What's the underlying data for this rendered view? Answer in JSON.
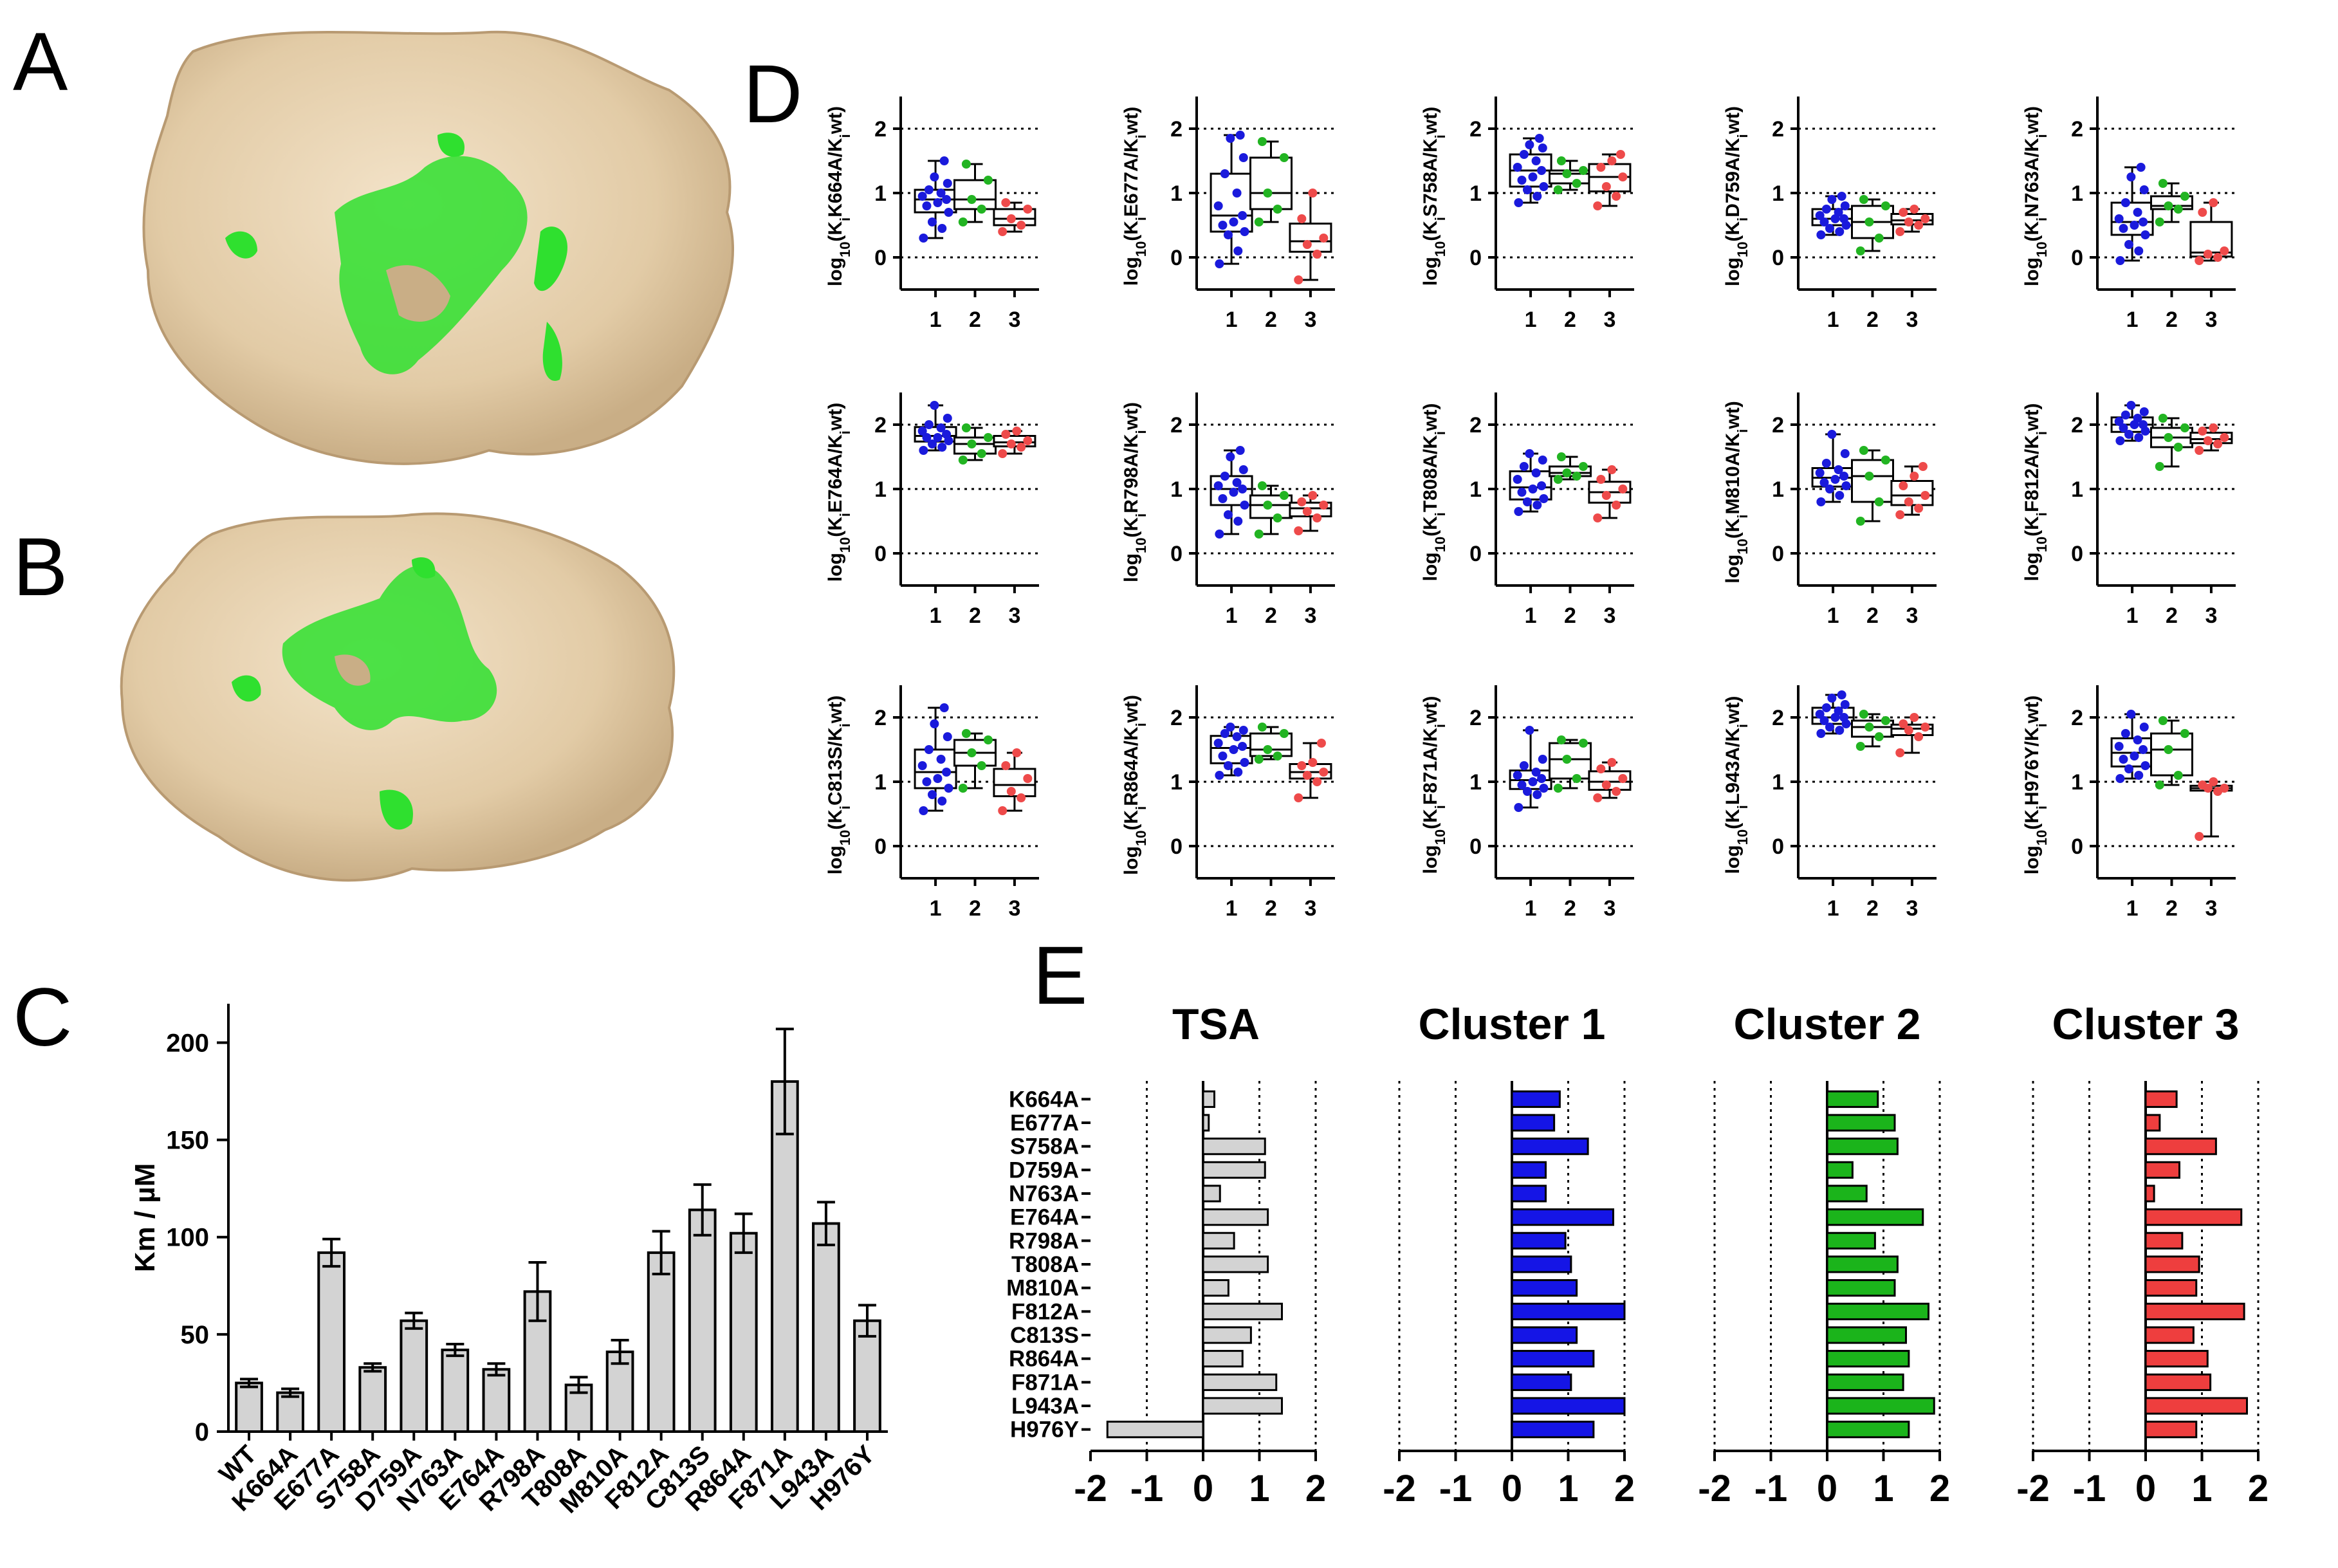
{
  "panel_labels": {
    "a": "A",
    "b": "B",
    "c": "C",
    "d": "D",
    "e": "E"
  },
  "structure_images": {
    "a": {
      "surface_color": "#e8d4b4",
      "highlight_color": "#2fe02f"
    },
    "b": {
      "surface_color": "#e8d4b4",
      "highlight_color": "#2fe02f"
    }
  },
  "chart_data": [
    {
      "id": "C",
      "type": "bar",
      "ylabel": "Km / µM",
      "ylim": [
        0,
        220
      ],
      "yticks": [
        0,
        50,
        100,
        150,
        200
      ],
      "categories": [
        "WT",
        "K664A",
        "E677A",
        "S758A",
        "D759A",
        "N763A",
        "E764A",
        "R798A",
        "T808A",
        "M810A",
        "F812A",
        "C813S",
        "R864A",
        "F871A",
        "L943A",
        "H976Y"
      ],
      "values": [
        25,
        20,
        92,
        33,
        57,
        42,
        32,
        72,
        24,
        41,
        92,
        114,
        102,
        180,
        107,
        57
      ],
      "errors": [
        2,
        2,
        7,
        2,
        4,
        3,
        3,
        15,
        4,
        6,
        11,
        13,
        10,
        27,
        11,
        8
      ],
      "bar_color": "#d3d3d3"
    },
    {
      "id": "D",
      "type": "box",
      "xticks": [
        "1",
        "2",
        "3"
      ],
      "yticks": [
        "0",
        "1",
        "2"
      ],
      "ylim": [
        -0.5,
        2.5
      ],
      "group_colors": [
        "#1a1adc",
        "#22b422",
        "#ee4a4a"
      ],
      "panels": [
        {
          "ylabel_mut": "K664A",
          "groups": [
            [
              0.3,
              0.45,
              0.55,
              0.7,
              0.8,
              0.85,
              0.9,
              0.95,
              1.0,
              1.05,
              1.15,
              1.25,
              1.5
            ],
            [
              0.55,
              0.75,
              0.9,
              1.2,
              1.45
            ],
            [
              0.4,
              0.5,
              0.6,
              0.75,
              0.85
            ]
          ]
        },
        {
          "ylabel_mut": "E677A",
          "groups": [
            [
              -0.1,
              0.1,
              0.35,
              0.4,
              0.5,
              0.55,
              0.65,
              0.8,
              1.0,
              1.3,
              1.55,
              1.85,
              1.9
            ],
            [
              0.55,
              0.75,
              1.0,
              1.55,
              1.8
            ],
            [
              -0.35,
              0.05,
              0.2,
              0.3,
              0.6,
              1.0
            ]
          ]
        },
        {
          "ylabel_mut": "S758A",
          "groups": [
            [
              0.85,
              0.95,
              1.05,
              1.1,
              1.2,
              1.25,
              1.35,
              1.4,
              1.5,
              1.6,
              1.7,
              1.75,
              1.85
            ],
            [
              1.05,
              1.15,
              1.3,
              1.35,
              1.5
            ],
            [
              0.8,
              0.95,
              1.1,
              1.25,
              1.4,
              1.5,
              1.6
            ]
          ]
        },
        {
          "ylabel_mut": "D759A",
          "groups": [
            [
              0.35,
              0.4,
              0.45,
              0.5,
              0.55,
              0.6,
              0.6,
              0.65,
              0.7,
              0.75,
              0.8,
              0.9,
              0.95
            ],
            [
              0.1,
              0.3,
              0.55,
              0.8,
              0.9
            ],
            [
              0.4,
              0.5,
              0.55,
              0.6,
              0.7,
              0.75
            ]
          ]
        },
        {
          "ylabel_mut": "N763A",
          "groups": [
            [
              -0.05,
              0.1,
              0.2,
              0.35,
              0.45,
              0.5,
              0.55,
              0.6,
              0.7,
              0.85,
              1.05,
              1.25,
              1.4
            ],
            [
              0.55,
              0.75,
              0.8,
              0.95,
              1.15
            ],
            [
              -0.05,
              0.0,
              0.05,
              0.1,
              0.7,
              0.85
            ]
          ]
        },
        {
          "ylabel_mut": "E764A",
          "groups": [
            [
              1.6,
              1.65,
              1.7,
              1.75,
              1.8,
              1.8,
              1.85,
              1.9,
              1.95,
              2.0,
              2.1,
              2.3
            ],
            [
              1.45,
              1.55,
              1.7,
              1.8,
              1.95
            ],
            [
              1.55,
              1.65,
              1.7,
              1.75,
              1.85,
              1.9
            ]
          ]
        },
        {
          "ylabel_mut": "R798A",
          "groups": [
            [
              0.3,
              0.5,
              0.6,
              0.75,
              0.85,
              0.95,
              1.0,
              1.05,
              1.1,
              1.2,
              1.3,
              1.5,
              1.6
            ],
            [
              0.3,
              0.55,
              0.75,
              0.9,
              1.05
            ],
            [
              0.35,
              0.55,
              0.65,
              0.75,
              0.8,
              0.9
            ]
          ]
        },
        {
          "ylabel_mut": "T808A",
          "groups": [
            [
              0.65,
              0.75,
              0.8,
              0.85,
              0.95,
              1.0,
              1.05,
              1.15,
              1.25,
              1.35,
              1.45,
              1.55
            ],
            [
              1.15,
              1.2,
              1.25,
              1.35,
              1.5
            ],
            [
              0.55,
              0.75,
              0.9,
              1.0,
              1.15,
              1.3
            ]
          ]
        },
        {
          "ylabel_mut": "M810A",
          "groups": [
            [
              0.8,
              0.9,
              1.0,
              1.05,
              1.1,
              1.15,
              1.2,
              1.25,
              1.3,
              1.4,
              1.55,
              1.85
            ],
            [
              0.5,
              0.8,
              1.2,
              1.45,
              1.6
            ],
            [
              0.6,
              0.7,
              0.8,
              0.9,
              1.05,
              1.2,
              1.35
            ]
          ]
        },
        {
          "ylabel_mut": "F812A",
          "groups": [
            [
              1.75,
              1.8,
              1.85,
              1.9,
              1.95,
              2.0,
              2.0,
              2.05,
              2.1,
              2.15,
              2.2,
              2.3
            ],
            [
              1.35,
              1.65,
              1.8,
              1.95,
              2.1
            ],
            [
              1.6,
              1.7,
              1.75,
              1.8,
              1.9,
              1.95
            ]
          ]
        },
        {
          "ylabel_mut": "C813S",
          "groups": [
            [
              0.55,
              0.7,
              0.8,
              0.9,
              1.0,
              1.05,
              1.15,
              1.25,
              1.35,
              1.5,
              1.7,
              1.9,
              2.15
            ],
            [
              0.9,
              1.25,
              1.45,
              1.65,
              1.75
            ],
            [
              0.55,
              0.75,
              0.85,
              1.05,
              1.25,
              1.45
            ]
          ]
        },
        {
          "ylabel_mut": "R864A",
          "groups": [
            [
              1.1,
              1.15,
              1.25,
              1.3,
              1.4,
              1.5,
              1.55,
              1.6,
              1.7,
              1.75,
              1.8,
              1.85
            ],
            [
              1.35,
              1.4,
              1.5,
              1.75,
              1.85
            ],
            [
              0.75,
              1.0,
              1.1,
              1.15,
              1.25,
              1.3,
              1.6
            ]
          ]
        },
        {
          "ylabel_mut": "F871A",
          "groups": [
            [
              0.6,
              0.8,
              0.85,
              0.9,
              0.95,
              1.0,
              1.05,
              1.1,
              1.15,
              1.25,
              1.35,
              1.8
            ],
            [
              0.9,
              1.05,
              1.35,
              1.6,
              1.65
            ],
            [
              0.75,
              0.85,
              0.95,
              1.05,
              1.2,
              1.3
            ]
          ]
        },
        {
          "ylabel_mut": "L943A",
          "groups": [
            [
              1.75,
              1.8,
              1.85,
              1.9,
              1.95,
              2.0,
              2.0,
              2.05,
              2.1,
              2.15,
              2.2,
              2.3,
              2.35
            ],
            [
              1.55,
              1.7,
              1.85,
              1.95,
              2.05
            ],
            [
              1.45,
              1.7,
              1.8,
              1.85,
              1.9,
              2.0
            ]
          ]
        },
        {
          "ylabel_mut": "H976Y",
          "groups": [
            [
              1.05,
              1.1,
              1.2,
              1.25,
              1.35,
              1.4,
              1.5,
              1.55,
              1.65,
              1.75,
              1.85,
              2.05
            ],
            [
              0.95,
              1.1,
              1.5,
              1.75,
              1.95
            ],
            [
              0.15,
              0.85,
              0.9,
              0.9,
              0.95,
              1.0
            ]
          ]
        }
      ]
    },
    {
      "id": "E",
      "type": "bar",
      "orientation": "horizontal",
      "xlim": [
        -2,
        2
      ],
      "xticks": [
        "-2",
        "-1",
        "0",
        "1",
        "2"
      ],
      "categories": [
        "K664A",
        "E677A",
        "S758A",
        "D759A",
        "N763A",
        "E764A",
        "R798A",
        "T808A",
        "M810A",
        "F812A",
        "C813S",
        "R864A",
        "F871A",
        "L943A",
        "H976Y"
      ],
      "series": [
        {
          "name": "TSA",
          "color": "#d3d3d3",
          "values": [
            0.2,
            0.1,
            1.1,
            1.1,
            0.3,
            1.15,
            0.55,
            1.15,
            0.45,
            1.4,
            0.85,
            0.7,
            1.3,
            1.4,
            -1.7
          ]
        },
        {
          "name": "Cluster 1",
          "color": "#1515e6",
          "values": [
            0.85,
            0.75,
            1.35,
            0.6,
            0.6,
            1.8,
            0.95,
            1.05,
            1.15,
            2.0,
            1.15,
            1.45,
            1.05,
            2.0,
            1.45
          ]
        },
        {
          "name": "Cluster 2",
          "color": "#1bb41b",
          "values": [
            0.9,
            1.2,
            1.25,
            0.45,
            0.7,
            1.7,
            0.85,
            1.25,
            1.2,
            1.8,
            1.4,
            1.45,
            1.35,
            1.9,
            1.45
          ]
        },
        {
          "name": "Cluster 3",
          "color": "#ee3e3e",
          "values": [
            0.55,
            0.25,
            1.25,
            0.6,
            0.15,
            1.7,
            0.65,
            0.95,
            0.9,
            1.75,
            0.85,
            1.1,
            1.15,
            1.8,
            0.9
          ]
        }
      ]
    }
  ]
}
